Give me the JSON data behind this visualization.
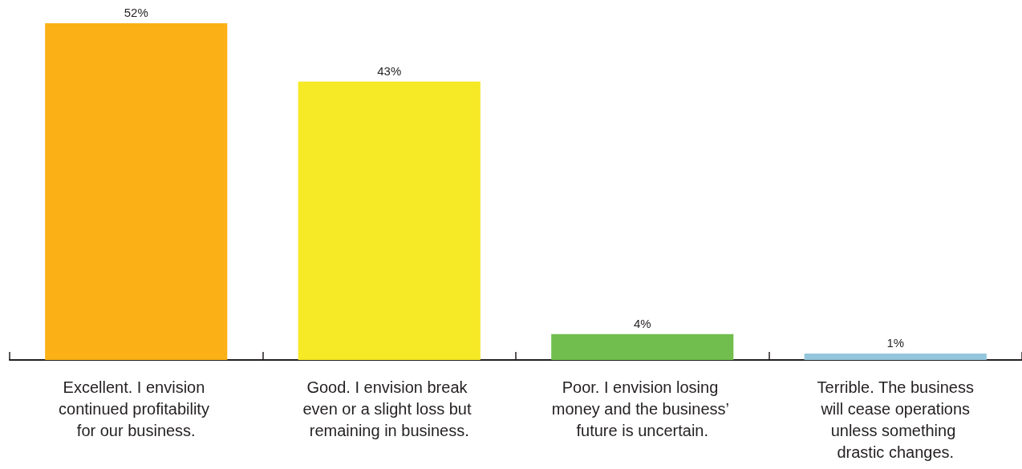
{
  "chart_data": {
    "type": "bar",
    "categories": [
      "Excellent. I envision continued profitability for our business.",
      "Good. I envision break even or a slight loss but remaining in business.",
      "Poor. I envision losing money and the business’ future is uncertain.",
      "Terrible. The business will cease operations unless something drastic changes."
    ],
    "values": [
      52,
      43,
      4,
      1
    ],
    "colors": [
      "#fbb116",
      "#f6e925",
      "#71be4f",
      "#94c6dc"
    ],
    "value_labels": [
      "52%",
      "43%",
      "4%",
      "1%"
    ],
    "tick_labels": "x"
  }
}
